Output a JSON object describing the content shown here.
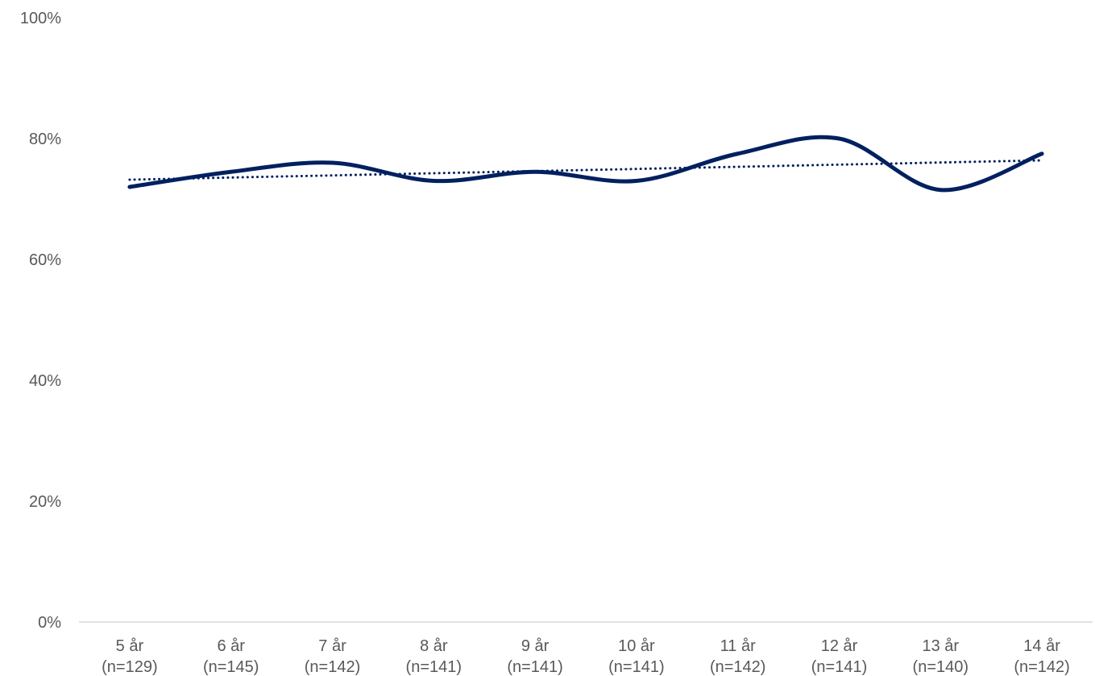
{
  "chart_data": {
    "type": "line",
    "categories": [
      "5 år",
      "6 år",
      "7 år",
      "8 år",
      "9 år",
      "10 år",
      "11 år",
      "12 år",
      "13 år",
      "14 år"
    ],
    "sample_sizes": [
      "(n=129)",
      "(n=145)",
      "(n=142)",
      "(n=141)",
      "(n=141)",
      "(n=141)",
      "(n=142)",
      "(n=141)",
      "(n=140)",
      "(n=142)"
    ],
    "series": [
      {
        "values": [
          72,
          74.5,
          76,
          73,
          74.5,
          73,
          77.5,
          80,
          71.5,
          77.5
        ],
        "color": "#002060",
        "style": "solid",
        "smooth": true
      }
    ],
    "trendline": {
      "type": "linear",
      "start": 73.2,
      "end": 76.4,
      "color": "#002060",
      "style": "dotted"
    },
    "yticks": [
      "0%",
      "20%",
      "40%",
      "60%",
      "80%",
      "100%"
    ],
    "ylim": [
      0,
      100
    ],
    "grid": false,
    "legend": "none",
    "title": "",
    "xlabel": "",
    "ylabel": ""
  }
}
